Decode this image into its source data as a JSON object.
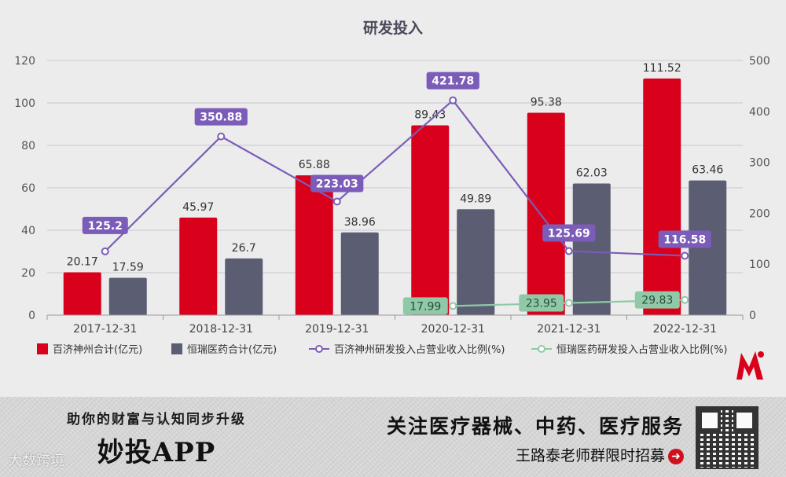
{
  "chart_data": {
    "type": "bar",
    "title": "研发投入",
    "categories": [
      "2017-12-31",
      "2018-12-31",
      "2019-12-31",
      "2020-12-31",
      "2021-12-31",
      "2022-12-31"
    ],
    "series": [
      {
        "name": "百济神州合计(亿元)",
        "kind": "bar",
        "axis": "left",
        "color": "#d9001b",
        "values": [
          20.17,
          45.97,
          65.88,
          89.43,
          95.38,
          111.52
        ],
        "labels": [
          "20.17",
          "45.97",
          "65.88",
          "89.43",
          "95.38",
          "111.52"
        ]
      },
      {
        "name": "恒瑞医药合计(亿元)",
        "kind": "bar",
        "axis": "left",
        "color": "#5b5d72",
        "values": [
          17.59,
          26.7,
          38.96,
          49.89,
          62.03,
          63.46
        ],
        "labels": [
          "17.59",
          "26.7",
          "38.96",
          "49.89",
          "62.03",
          "63.46"
        ]
      },
      {
        "name": "百济神州研发投入占营业收入比例(%)",
        "kind": "line",
        "axis": "right",
        "color": "#7b5cb8",
        "values": [
          125.2,
          350.88,
          223.03,
          421.78,
          125.69,
          116.58
        ],
        "labels": [
          "125.2",
          "350.88",
          "223.03",
          "421.78",
          "125.69",
          "116.58"
        ]
      },
      {
        "name": "恒瑞医药研发投入占营业收入比例(%)",
        "kind": "line",
        "axis": "right",
        "color": "#8fc9a8",
        "values": [
          null,
          null,
          null,
          17.99,
          23.95,
          29.83
        ],
        "labels": [
          "",
          "",
          "",
          "17.99",
          "23.95",
          "29.83"
        ]
      }
    ],
    "ylim_left": [
      0,
      120
    ],
    "yticks_left": [
      "0",
      "20",
      "40",
      "60",
      "80",
      "100",
      "120"
    ],
    "ylim_right": [
      0,
      500
    ],
    "yticks_right": [
      "0",
      "100",
      "200",
      "300",
      "400",
      "500"
    ],
    "grid": true,
    "legend": "bottom"
  },
  "banner": {
    "slogan": "助你的财富与认知同步升级",
    "app_name": "妙投APP",
    "focus": "关注医疗器械、中药、医疗服务",
    "recruit": "王路泰老师群限时招募",
    "arrow_icon": "arrow-right-circle-icon"
  },
  "watermark": "大数跨境",
  "logo_icon": "m-logo-icon"
}
